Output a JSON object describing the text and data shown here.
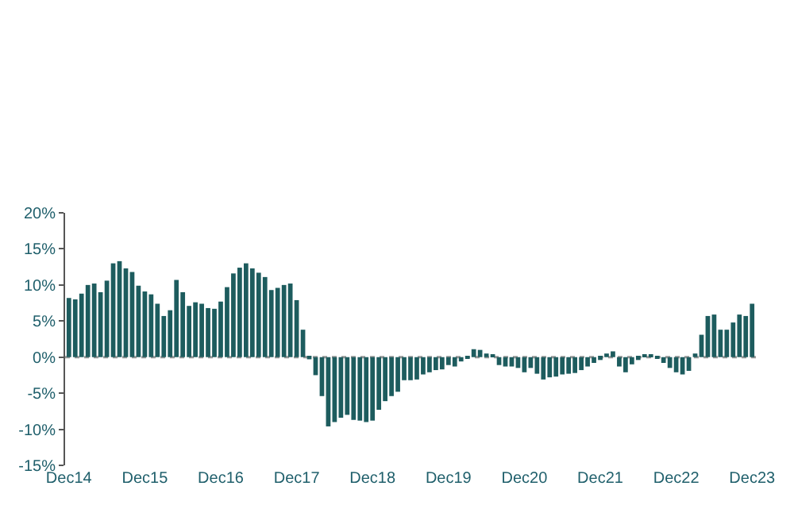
{
  "chart_data": {
    "type": "bar",
    "categories": [
      "Dec14",
      null,
      null,
      null,
      null,
      null,
      null,
      null,
      null,
      null,
      null,
      null,
      "Dec15",
      null,
      null,
      null,
      null,
      null,
      null,
      null,
      null,
      null,
      null,
      null,
      "Dec16",
      null,
      null,
      null,
      null,
      null,
      null,
      null,
      null,
      null,
      null,
      null,
      "Dec17",
      null,
      null,
      null,
      null,
      null,
      null,
      null,
      null,
      null,
      null,
      null,
      "Dec18",
      null,
      null,
      null,
      null,
      null,
      null,
      null,
      null,
      null,
      null,
      null,
      "Dec19",
      null,
      null,
      null,
      null,
      null,
      null,
      null,
      null,
      null,
      null,
      null,
      "Dec20",
      null,
      null,
      null,
      null,
      null,
      null,
      null,
      null,
      null,
      null,
      null,
      "Dec21",
      null,
      null,
      null,
      null,
      null,
      null,
      null,
      null,
      null,
      null,
      null,
      "Dec22",
      null,
      null,
      null,
      null,
      null,
      null,
      null,
      null,
      null,
      null,
      null,
      "Dec23"
    ],
    "values": [
      8.2,
      8.0,
      8.8,
      10.0,
      10.2,
      9.0,
      10.6,
      13.0,
      13.3,
      12.3,
      11.8,
      9.9,
      9.1,
      8.7,
      7.4,
      5.7,
      6.5,
      10.7,
      9.0,
      7.1,
      7.6,
      7.4,
      6.8,
      6.7,
      7.7,
      9.7,
      11.6,
      12.4,
      13.0,
      12.3,
      11.7,
      11.1,
      9.3,
      9.6,
      10.0,
      10.2,
      7.9,
      3.8,
      -0.3,
      -2.5,
      -5.4,
      -9.6,
      -9.0,
      -8.4,
      -8.0,
      -8.7,
      -8.8,
      -9.0,
      -8.8,
      -7.3,
      -6.1,
      -5.4,
      -4.8,
      -3.2,
      -3.2,
      -3.1,
      -2.4,
      -2.1,
      -1.8,
      -1.7,
      -1.1,
      -1.3,
      -0.6,
      -0.2,
      1.1,
      1.0,
      0.5,
      0.4,
      -1.1,
      -1.3,
      -1.3,
      -1.5,
      -2.1,
      -1.5,
      -2.3,
      -3.1,
      -2.8,
      -2.7,
      -2.4,
      -2.3,
      -2.2,
      -1.8,
      -1.3,
      -0.8,
      -0.4,
      0.5,
      0.8,
      -1.3,
      -2.1,
      -1.0,
      -0.4,
      0.2,
      0.2,
      -0.2,
      -0.8,
      -1.5,
      -2.1,
      -2.4,
      -1.9,
      0.5,
      3.1,
      5.7,
      5.9,
      3.8,
      3.8,
      4.8,
      5.9,
      5.7,
      7.4
    ],
    "color": "#1d5c5e",
    "ylim": [
      -15,
      20
    ],
    "yticks": [
      {
        "value": -15,
        "label": "-15%"
      },
      {
        "value": -10,
        "label": "-10%"
      },
      {
        "value": -5,
        "label": "-5%"
      },
      {
        "value": 0,
        "label": "0%"
      },
      {
        "value": 5,
        "label": "5%"
      },
      {
        "value": 10,
        "label": "10%"
      },
      {
        "value": 15,
        "label": "15%"
      },
      {
        "value": 20,
        "label": "20%"
      }
    ],
    "ref_lines": [
      {
        "axis": "y",
        "value": 0,
        "color": "#999999",
        "line_style": "dotted"
      }
    ]
  }
}
